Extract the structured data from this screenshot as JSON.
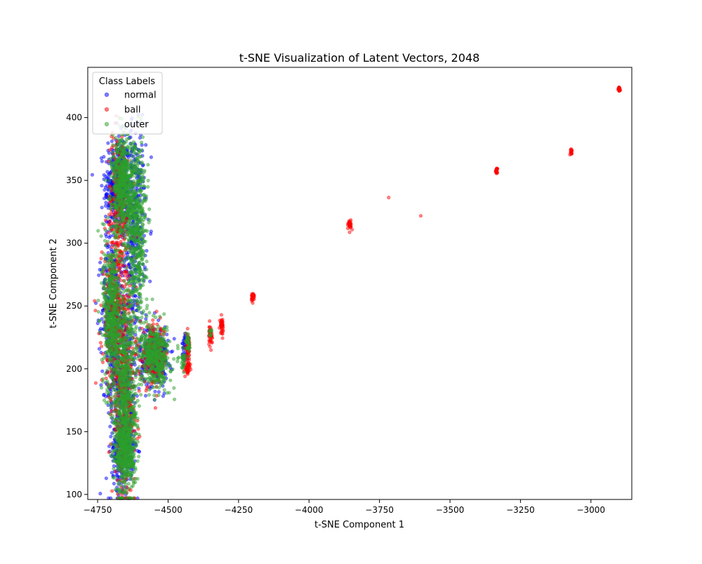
{
  "chart_data": {
    "type": "scatter",
    "title": "t-SNE Visualization of Latent Vectors, 2048",
    "xlabel": "t-SNE Component 1",
    "ylabel": "t-SNE Component 2",
    "xlim": [
      -4785,
      -2855
    ],
    "ylim": [
      96,
      440
    ],
    "xticks": [
      -4750,
      -4500,
      -4250,
      -4000,
      -3750,
      -3500,
      -3250,
      -3000
    ],
    "xtick_labels": [
      "−4750",
      "−4500",
      "−4250",
      "−4000",
      "−3750",
      "−3500",
      "−3250",
      "−3000"
    ],
    "yticks": [
      100,
      150,
      200,
      250,
      300,
      350,
      400
    ],
    "ytick_labels": [
      "100",
      "150",
      "200",
      "250",
      "300",
      "350",
      "400"
    ],
    "grid": false,
    "legend": {
      "title": "Class Labels",
      "placement": "top-left"
    },
    "series": [
      {
        "name": "normal",
        "color": "#0000ff",
        "alpha": 0.5,
        "clusters": [
          {
            "x": -4680,
            "y": 345,
            "sx": 22,
            "sy": 20,
            "n": 400
          },
          {
            "x": -4620,
            "y": 315,
            "sx": 20,
            "sy": 40,
            "n": 350
          },
          {
            "x": -4700,
            "y": 245,
            "sx": 18,
            "sy": 30,
            "n": 300
          },
          {
            "x": -4660,
            "y": 185,
            "sx": 25,
            "sy": 40,
            "n": 450
          },
          {
            "x": -4660,
            "y": 135,
            "sx": 20,
            "sy": 12,
            "n": 200
          },
          {
            "x": -4550,
            "y": 210,
            "sx": 25,
            "sy": 12,
            "n": 300
          },
          {
            "x": -4440,
            "y": 218,
            "sx": 5,
            "sy": 6,
            "n": 40
          }
        ]
      },
      {
        "name": "ball",
        "color": "#ff0000",
        "alpha": 0.5,
        "clusters": [
          {
            "x": -4675,
            "y": 330,
            "sx": 20,
            "sy": 30,
            "n": 250
          },
          {
            "x": -4690,
            "y": 240,
            "sx": 22,
            "sy": 30,
            "n": 300
          },
          {
            "x": -4655,
            "y": 175,
            "sx": 22,
            "sy": 40,
            "n": 350
          },
          {
            "x": -4550,
            "y": 210,
            "sx": 25,
            "sy": 12,
            "n": 200
          },
          {
            "x": -4430,
            "y": 218,
            "sx": 4,
            "sy": 5,
            "n": 60
          },
          {
            "x": -4430,
            "y": 201,
            "sx": 4,
            "sy": 3,
            "n": 40
          },
          {
            "x": -4350,
            "y": 226,
            "sx": 3,
            "sy": 4,
            "n": 40
          },
          {
            "x": -4310,
            "y": 235,
            "sx": 3,
            "sy": 3,
            "n": 40
          },
          {
            "x": -4200,
            "y": 257,
            "sx": 3,
            "sy": 2,
            "n": 30
          },
          {
            "x": -3855,
            "y": 315,
            "sx": 3,
            "sy": 2,
            "n": 30
          },
          {
            "x": -3715,
            "y": 336,
            "sx": 1,
            "sy": 1,
            "n": 1
          },
          {
            "x": -3605,
            "y": 321,
            "sx": 1,
            "sy": 1,
            "n": 1
          },
          {
            "x": -3335,
            "y": 358,
            "sx": 2,
            "sy": 1,
            "n": 20
          },
          {
            "x": -3070,
            "y": 373,
            "sx": 2,
            "sy": 1,
            "n": 15
          },
          {
            "x": -2900,
            "y": 423,
            "sx": 2,
            "sy": 1,
            "n": 20
          }
        ]
      },
      {
        "name": "outer",
        "color": "#2ca02c",
        "alpha": 0.5,
        "clusters": [
          {
            "x": -4660,
            "y": 345,
            "sx": 20,
            "sy": 20,
            "n": 600
          },
          {
            "x": -4610,
            "y": 310,
            "sx": 18,
            "sy": 35,
            "n": 500
          },
          {
            "x": -4700,
            "y": 245,
            "sx": 15,
            "sy": 30,
            "n": 500
          },
          {
            "x": -4655,
            "y": 180,
            "sx": 22,
            "sy": 40,
            "n": 800
          },
          {
            "x": -4650,
            "y": 135,
            "sx": 18,
            "sy": 12,
            "n": 300
          },
          {
            "x": -4545,
            "y": 210,
            "sx": 25,
            "sy": 12,
            "n": 450
          },
          {
            "x": -4430,
            "y": 219,
            "sx": 4,
            "sy": 4,
            "n": 30
          },
          {
            "x": -4445,
            "y": 205,
            "sx": 4,
            "sy": 4,
            "n": 25
          },
          {
            "x": -4350,
            "y": 228,
            "sx": 2,
            "sy": 2,
            "n": 8
          }
        ]
      }
    ]
  }
}
